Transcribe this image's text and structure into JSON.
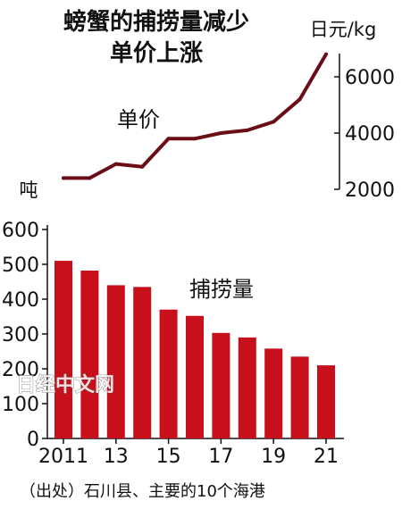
{
  "title_line1": "螃蟹的捕捞量减少",
  "title_line2": "单价上涨",
  "watermark": "日经中文网",
  "source_note": "（出处）石川县、主要的10个海港",
  "chart_data": [
    {
      "type": "line",
      "name": "单价",
      "unit": "日元/kg",
      "x": [
        2011,
        2012,
        2013,
        2014,
        2015,
        2016,
        2017,
        2018,
        2019,
        2020,
        2021
      ],
      "values": [
        2400,
        2400,
        2900,
        2800,
        3800,
        3800,
        4000,
        4100,
        4400,
        5200,
        6800
      ],
      "yticks": [
        2000,
        4000,
        6000
      ],
      "ylim": [
        2000,
        7000
      ],
      "axis_position": "right",
      "color": "#6b0d17"
    },
    {
      "type": "bar",
      "name": "捕捞量",
      "unit": "吨",
      "categories": [
        2011,
        2012,
        2013,
        2014,
        2015,
        2016,
        2017,
        2018,
        2019,
        2020,
        2021
      ],
      "x_tick_labels": [
        "2011",
        "13",
        "15",
        "17",
        "19",
        "21"
      ],
      "values": [
        510,
        482,
        440,
        435,
        370,
        352,
        303,
        290,
        258,
        235,
        210
      ],
      "yticks": [
        0,
        100,
        200,
        300,
        400,
        500,
        600
      ],
      "ylim": [
        0,
        620
      ],
      "color": "#c8101d"
    }
  ]
}
